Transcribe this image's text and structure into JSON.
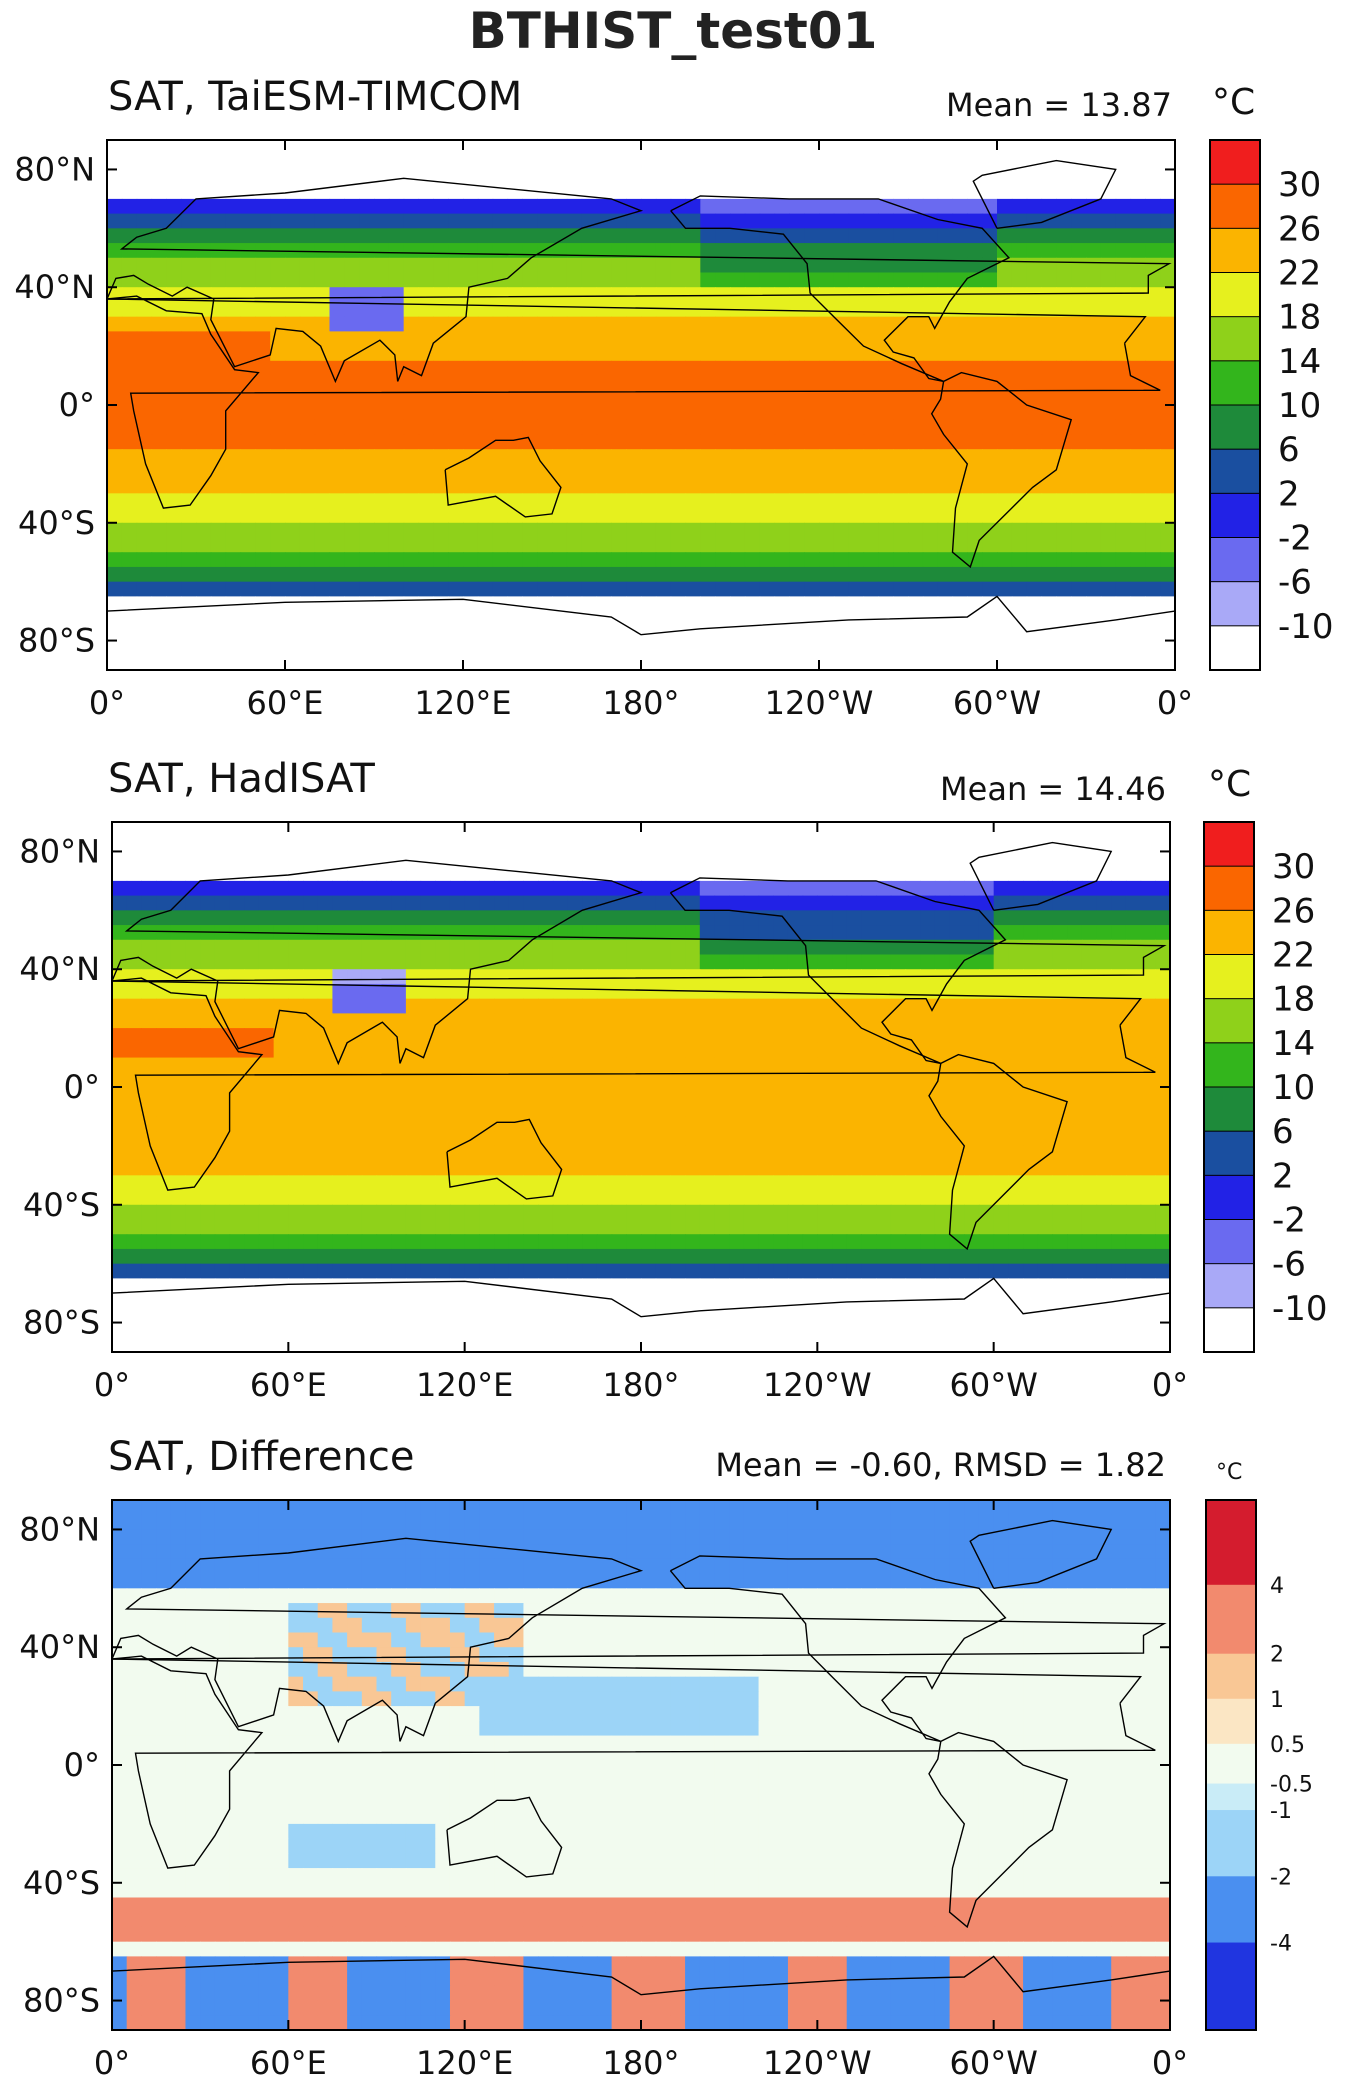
{
  "figure_title": "BTHIST_test01",
  "colors": {
    "sat_levels": [
      "#ffffff",
      "#a9a9f7",
      "#6a6af0",
      "#2222e6",
      "#1a4fa0",
      "#1e8a3a",
      "#33b51c",
      "#8fd11a",
      "#e6f01e",
      "#fbb400",
      "#fa6600",
      "#f01e1e"
    ],
    "diff_levels": [
      "#2035e0",
      "#4a8ff0",
      "#9cd4f7",
      "#c9ecf7",
      "#f2fbef",
      "#fbe6c4",
      "#f9c795",
      "#f28a6e",
      "#d41c2e"
    ],
    "coastline": "#000000"
  },
  "panels": [
    {
      "title": "SAT, TaiESM-TIMCOM",
      "mean_text": "Mean = 13.87",
      "unit": "°C",
      "colorbar_labels": [
        "30",
        "26",
        "22",
        "18",
        "14",
        "10",
        "6",
        "2",
        "-2",
        "-6",
        "-10"
      ]
    },
    {
      "title": "SAT, HadISAT",
      "mean_text": "Mean = 14.46",
      "unit": "°C",
      "colorbar_labels": [
        "30",
        "26",
        "22",
        "18",
        "14",
        "10",
        "6",
        "2",
        "-2",
        "-6",
        "-10"
      ]
    },
    {
      "title": "SAT, Difference",
      "mean_text": "Mean = -0.60, RMSD = 1.82",
      "unit": "°C",
      "colorbar_labels": [
        "4",
        "2",
        "1",
        "0.5",
        "-0.5",
        "-1",
        "-2",
        "-4"
      ]
    }
  ],
  "axes": {
    "x_tick_labels": [
      "0°",
      "60°E",
      "120°E",
      "180°",
      "120°W",
      "60°W",
      "0°"
    ],
    "y_tick_labels": [
      "80°N",
      "40°N",
      "0°",
      "40°S",
      "80°S"
    ]
  },
  "chart_data": [
    {
      "type": "heatmap",
      "title": "SAT, TaiESM-TIMCOM",
      "annotation": "Mean = 13.87",
      "x_range": [
        0,
        360
      ],
      "y_range": [
        -90,
        90
      ],
      "colorbar": {
        "unit": "°C",
        "levels": [
          -10,
          -6,
          -2,
          2,
          6,
          10,
          14,
          18,
          22,
          26,
          30
        ]
      },
      "value": {
        "mean": 13.87
      }
    },
    {
      "type": "heatmap",
      "title": "SAT, HadISAT",
      "annotation": "Mean = 14.46",
      "x_range": [
        0,
        360
      ],
      "y_range": [
        -90,
        90
      ],
      "colorbar": {
        "unit": "°C",
        "levels": [
          -10,
          -6,
          -2,
          2,
          6,
          10,
          14,
          18,
          22,
          26,
          30
        ]
      },
      "value": {
        "mean": 14.46
      }
    },
    {
      "type": "heatmap",
      "title": "SAT, Difference",
      "annotation": "Mean = -0.60, RMSD = 1.82",
      "x_range": [
        0,
        360
      ],
      "y_range": [
        -90,
        90
      ],
      "colorbar": {
        "unit": "°C",
        "levels": [
          -4,
          -2,
          -1,
          -0.5,
          0.5,
          1,
          2,
          4
        ]
      },
      "value": {
        "mean": -0.6,
        "rmsd": 1.82
      }
    }
  ]
}
